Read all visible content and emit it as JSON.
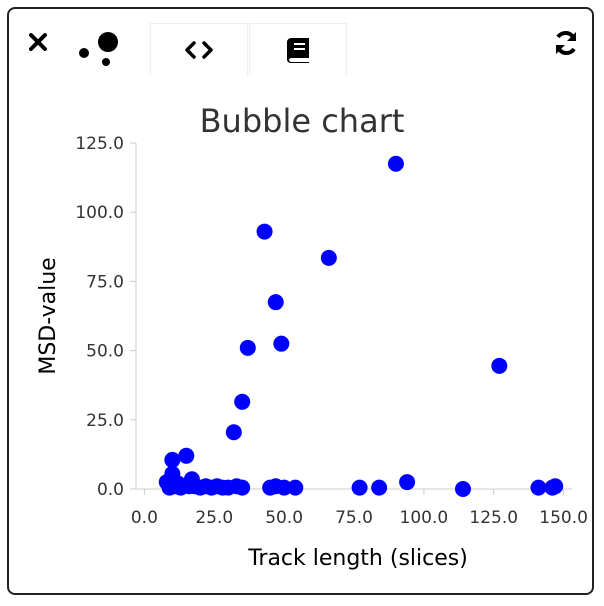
{
  "toolbar": {
    "close_icon": "close-icon",
    "bubble_icon": "bubble-chart-icon",
    "code_icon": "code-icon",
    "book_icon": "book-icon",
    "refresh_icon": "refresh-icon"
  },
  "colors": {
    "points": "#0000ff",
    "axis": "#cccccc",
    "text": "#333333"
  },
  "chart_data": {
    "type": "scatter",
    "title": "Bubble chart",
    "xlabel": "Track length (slices)",
    "ylabel": "MSD-value",
    "xlim": [
      -3,
      153
    ],
    "ylim": [
      0,
      125
    ],
    "xticks": [
      "0.0",
      "25.0",
      "50.0",
      "75.0",
      "100.0",
      "125.0",
      "150.0"
    ],
    "xtick_values": [
      0,
      25,
      50,
      75,
      100,
      125,
      150
    ],
    "yticks": [
      "0.0",
      "25.0",
      "50.0",
      "75.0",
      "100.0",
      "125.0"
    ],
    "ytick_values": [
      0,
      25,
      50,
      75,
      100,
      125
    ],
    "legend": "none",
    "grid": false,
    "points": [
      {
        "x": 8,
        "y": 2.5
      },
      {
        "x": 9,
        "y": 1.5
      },
      {
        "x": 9,
        "y": 0.5
      },
      {
        "x": 10,
        "y": 5.5
      },
      {
        "x": 10,
        "y": 10.5
      },
      {
        "x": 11,
        "y": 1.0
      },
      {
        "x": 12,
        "y": 2.0
      },
      {
        "x": 13,
        "y": 0.5
      },
      {
        "x": 15,
        "y": 12
      },
      {
        "x": 16,
        "y": 1.0
      },
      {
        "x": 17,
        "y": 3.5
      },
      {
        "x": 18,
        "y": 1.0
      },
      {
        "x": 20,
        "y": 0.5
      },
      {
        "x": 22,
        "y": 1.0
      },
      {
        "x": 24,
        "y": 0.5
      },
      {
        "x": 26,
        "y": 1.0
      },
      {
        "x": 28,
        "y": 0.5
      },
      {
        "x": 30,
        "y": 0.5
      },
      {
        "x": 32,
        "y": 20.5
      },
      {
        "x": 33,
        "y": 1.0
      },
      {
        "x": 35,
        "y": 31.5
      },
      {
        "x": 35,
        "y": 0.5
      },
      {
        "x": 37,
        "y": 51
      },
      {
        "x": 43,
        "y": 93
      },
      {
        "x": 45,
        "y": 0.5
      },
      {
        "x": 47,
        "y": 67.5
      },
      {
        "x": 47,
        "y": 1.0
      },
      {
        "x": 49,
        "y": 52.5
      },
      {
        "x": 50,
        "y": 0.5
      },
      {
        "x": 54,
        "y": 0.5
      },
      {
        "x": 66,
        "y": 83.5
      },
      {
        "x": 77,
        "y": 0.5
      },
      {
        "x": 84,
        "y": 0.5
      },
      {
        "x": 90,
        "y": 117.5
      },
      {
        "x": 94,
        "y": 2.5
      },
      {
        "x": 114,
        "y": 0.0
      },
      {
        "x": 127,
        "y": 44.5
      },
      {
        "x": 141,
        "y": 0.5
      },
      {
        "x": 146,
        "y": 0.5
      },
      {
        "x": 147,
        "y": 1.0
      }
    ]
  }
}
